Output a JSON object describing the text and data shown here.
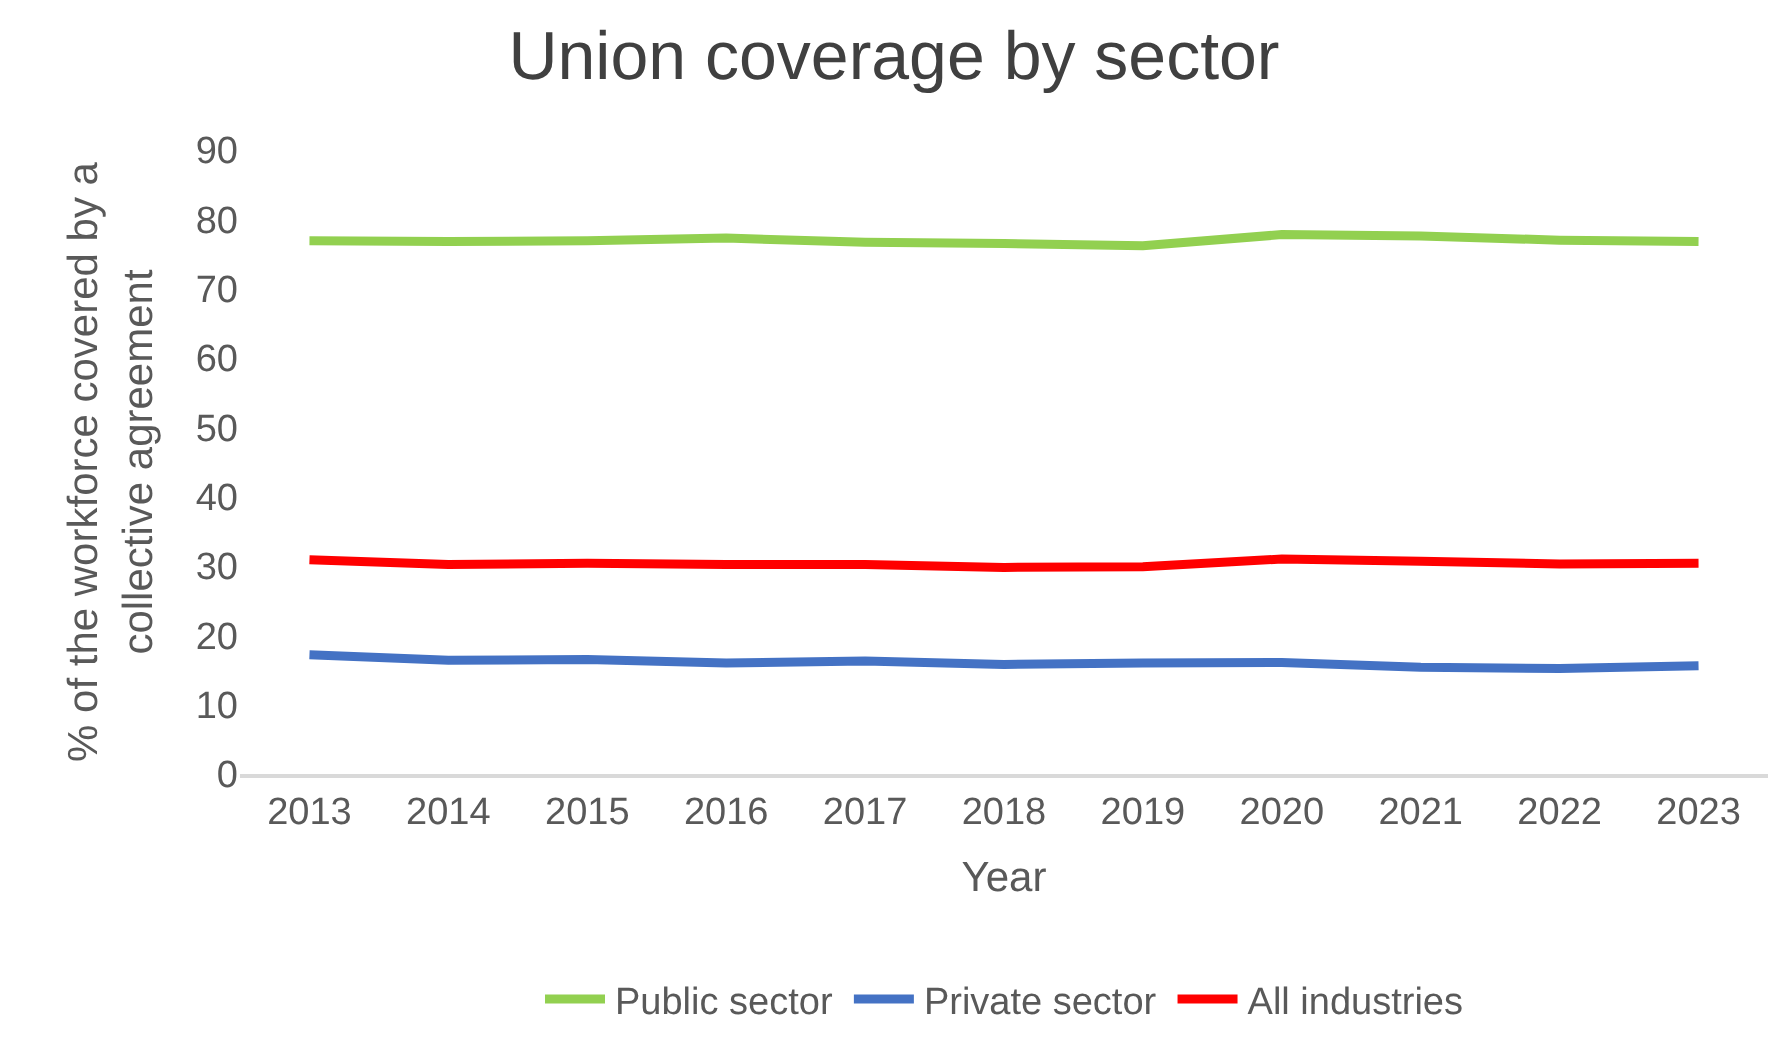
{
  "chart_data": {
    "type": "line",
    "title": "Union coverage by sector",
    "xlabel": "Year",
    "ylabel": "% of the workforce covered by a collective agreement",
    "categories": [
      "2013",
      "2014",
      "2015",
      "2016",
      "2017",
      "2018",
      "2019",
      "2020",
      "2021",
      "2022",
      "2023"
    ],
    "series": [
      {
        "name": "Public sector",
        "color": "#92d050",
        "values": [
          76.9,
          76.8,
          76.9,
          77.3,
          76.7,
          76.5,
          76.2,
          77.8,
          77.6,
          77.0,
          76.8
        ]
      },
      {
        "name": "Private sector",
        "color": "#4472c4",
        "values": [
          17.2,
          16.4,
          16.5,
          16.0,
          16.3,
          15.8,
          16.0,
          16.1,
          15.4,
          15.2,
          15.6
        ]
      },
      {
        "name": "All industries",
        "color": "#ff0000",
        "values": [
          30.9,
          30.2,
          30.4,
          30.2,
          30.2,
          29.8,
          29.9,
          31.0,
          30.7,
          30.3,
          30.4
        ]
      }
    ],
    "ylim": [
      0,
      90
    ],
    "yticks": [
      0,
      10,
      20,
      30,
      40,
      50,
      60,
      70,
      80,
      90
    ],
    "legend": "bottom",
    "marker": "none",
    "line_style": "solid"
  }
}
